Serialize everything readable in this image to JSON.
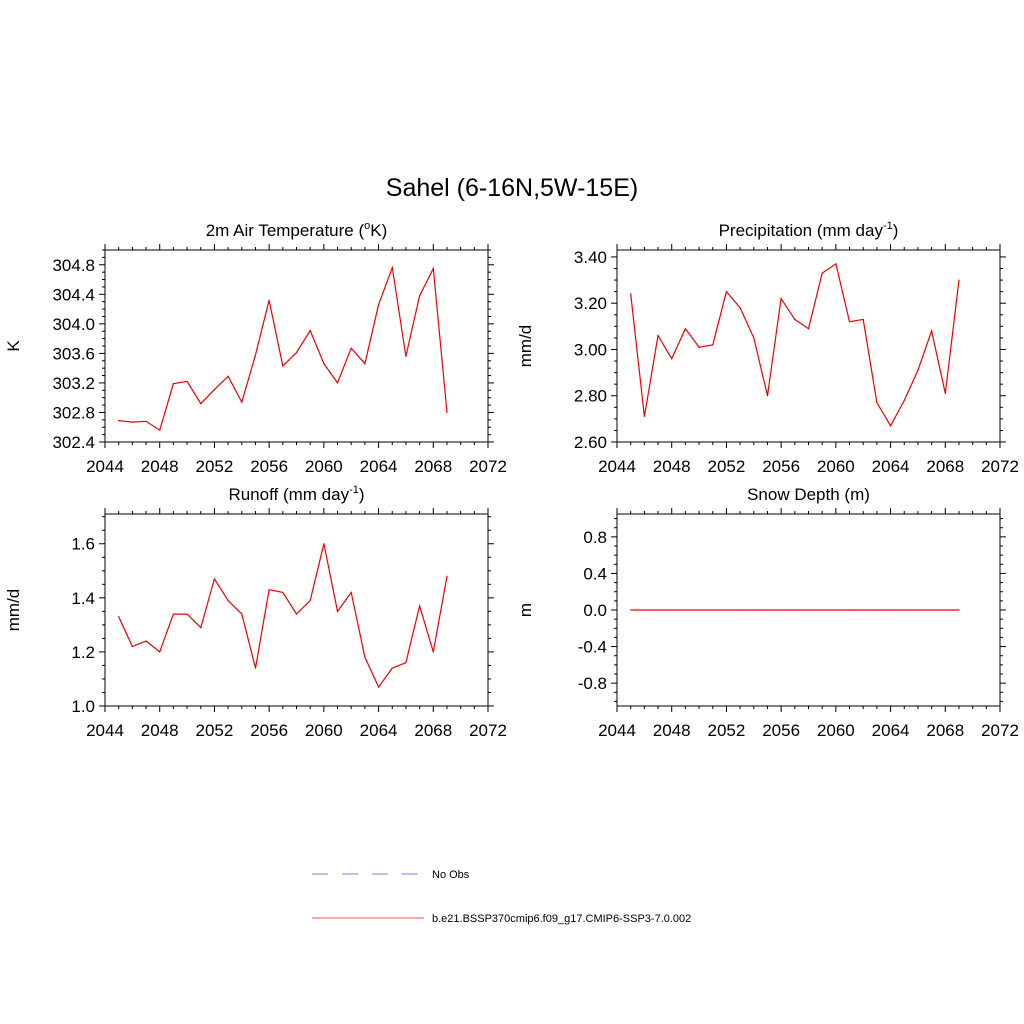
{
  "figure": {
    "title": "Sahel (6-16N,5W-15E)",
    "line_color": "#ee0000",
    "obs_color": "#9999ee"
  },
  "legend": {
    "items": [
      {
        "label": "No Obs",
        "style": "dashed",
        "color": "#9999ee"
      },
      {
        "label": "b.e21.BSSP370cmip6.f09_g17.CMIP6-SSP3-7.0.002",
        "style": "solid",
        "color": "#ee7777"
      }
    ]
  },
  "chart_data": [
    {
      "type": "line",
      "title": "2m Air Temperature (",
      "title_sup": "o",
      "title_tail": "K)",
      "title_sup_pos": "mid",
      "ylabel": "K",
      "xlim": [
        2044,
        2072
      ],
      "ylim": [
        302.4,
        305.0
      ],
      "xticks": [
        "2044",
        "2048",
        "2052",
        "2056",
        "2060",
        "2064",
        "2068",
        "2072"
      ],
      "yticks": [
        "302.4",
        "302.8",
        "303.2",
        "303.6",
        "304.0",
        "304.4",
        "304.8"
      ],
      "x": [
        2045,
        2046,
        2047,
        2048,
        2049,
        2050,
        2051,
        2052,
        2053,
        2054,
        2055,
        2056,
        2057,
        2058,
        2059,
        2060,
        2061,
        2062,
        2063,
        2064,
        2065,
        2066,
        2067,
        2068,
        2069
      ],
      "series": [
        {
          "values": [
            302.69,
            302.67,
            302.68,
            302.56,
            303.19,
            303.22,
            302.92,
            303.11,
            303.29,
            302.94,
            303.58,
            304.32,
            303.43,
            303.61,
            303.91,
            303.46,
            303.2,
            303.67,
            303.46,
            304.26,
            304.76,
            303.56,
            304.38,
            304.75,
            302.8
          ]
        }
      ]
    },
    {
      "type": "line",
      "title": "Precipitation (mm day",
      "title_sup": "-1",
      "title_tail": ")",
      "title_sup_pos": "end",
      "ylabel": "mm/d",
      "xlim": [
        2044,
        2072
      ],
      "ylim": [
        2.6,
        3.43
      ],
      "xticks": [
        "2044",
        "2048",
        "2052",
        "2056",
        "2060",
        "2064",
        "2068",
        "2072"
      ],
      "yticks": [
        "2.60",
        "2.80",
        "3.00",
        "3.20",
        "3.40"
      ],
      "x": [
        2045,
        2046,
        2047,
        2048,
        2049,
        2050,
        2051,
        2052,
        2053,
        2054,
        2055,
        2056,
        2057,
        2058,
        2059,
        2060,
        2061,
        2062,
        2063,
        2064,
        2065,
        2066,
        2067,
        2068,
        2069
      ],
      "series": [
        {
          "values": [
            3.24,
            2.71,
            3.06,
            2.96,
            3.09,
            3.01,
            3.02,
            3.25,
            3.18,
            3.05,
            2.8,
            3.22,
            3.13,
            3.09,
            3.33,
            3.37,
            3.12,
            3.13,
            2.77,
            2.67,
            2.78,
            2.91,
            3.08,
            2.81,
            3.3
          ]
        }
      ]
    },
    {
      "type": "line",
      "title": "Runoff (mm day",
      "title_sup": "-1",
      "title_tail": ")",
      "title_sup_pos": "end",
      "ylabel": "mm/d",
      "xlim": [
        2044,
        2072
      ],
      "ylim": [
        1.0,
        1.71
      ],
      "xticks": [
        "2044",
        "2048",
        "2052",
        "2056",
        "2060",
        "2064",
        "2068",
        "2072"
      ],
      "yticks": [
        "1.0",
        "1.2",
        "1.4",
        "1.6"
      ],
      "x": [
        2045,
        2046,
        2047,
        2048,
        2049,
        2050,
        2051,
        2052,
        2053,
        2054,
        2055,
        2056,
        2057,
        2058,
        2059,
        2060,
        2061,
        2062,
        2063,
        2064,
        2065,
        2066,
        2067,
        2068,
        2069
      ],
      "series": [
        {
          "values": [
            1.33,
            1.22,
            1.24,
            1.2,
            1.34,
            1.34,
            1.29,
            1.47,
            1.39,
            1.34,
            1.14,
            1.43,
            1.42,
            1.34,
            1.39,
            1.6,
            1.35,
            1.42,
            1.18,
            1.07,
            1.14,
            1.16,
            1.37,
            1.2,
            1.48
          ]
        }
      ]
    },
    {
      "type": "line",
      "title": "Snow Depth (m)",
      "title_sup": "",
      "title_tail": "",
      "title_sup_pos": "none",
      "ylabel": "m",
      "xlim": [
        2044,
        2072
      ],
      "ylim": [
        -1.05,
        1.05
      ],
      "xticks": [
        "2044",
        "2048",
        "2052",
        "2056",
        "2060",
        "2064",
        "2068",
        "2072"
      ],
      "yticks": [
        "-0.8",
        "-0.4",
        "0.0",
        "0.4",
        "0.8"
      ],
      "x": [
        2045,
        2046,
        2047,
        2048,
        2049,
        2050,
        2051,
        2052,
        2053,
        2054,
        2055,
        2056,
        2057,
        2058,
        2059,
        2060,
        2061,
        2062,
        2063,
        2064,
        2065,
        2066,
        2067,
        2068,
        2069
      ],
      "series": [
        {
          "values": [
            0,
            0,
            0,
            0,
            0,
            0,
            0,
            0,
            0,
            0,
            0,
            0,
            0,
            0,
            0,
            0,
            0,
            0,
            0,
            0,
            0,
            0,
            0,
            0,
            0
          ]
        }
      ]
    }
  ]
}
